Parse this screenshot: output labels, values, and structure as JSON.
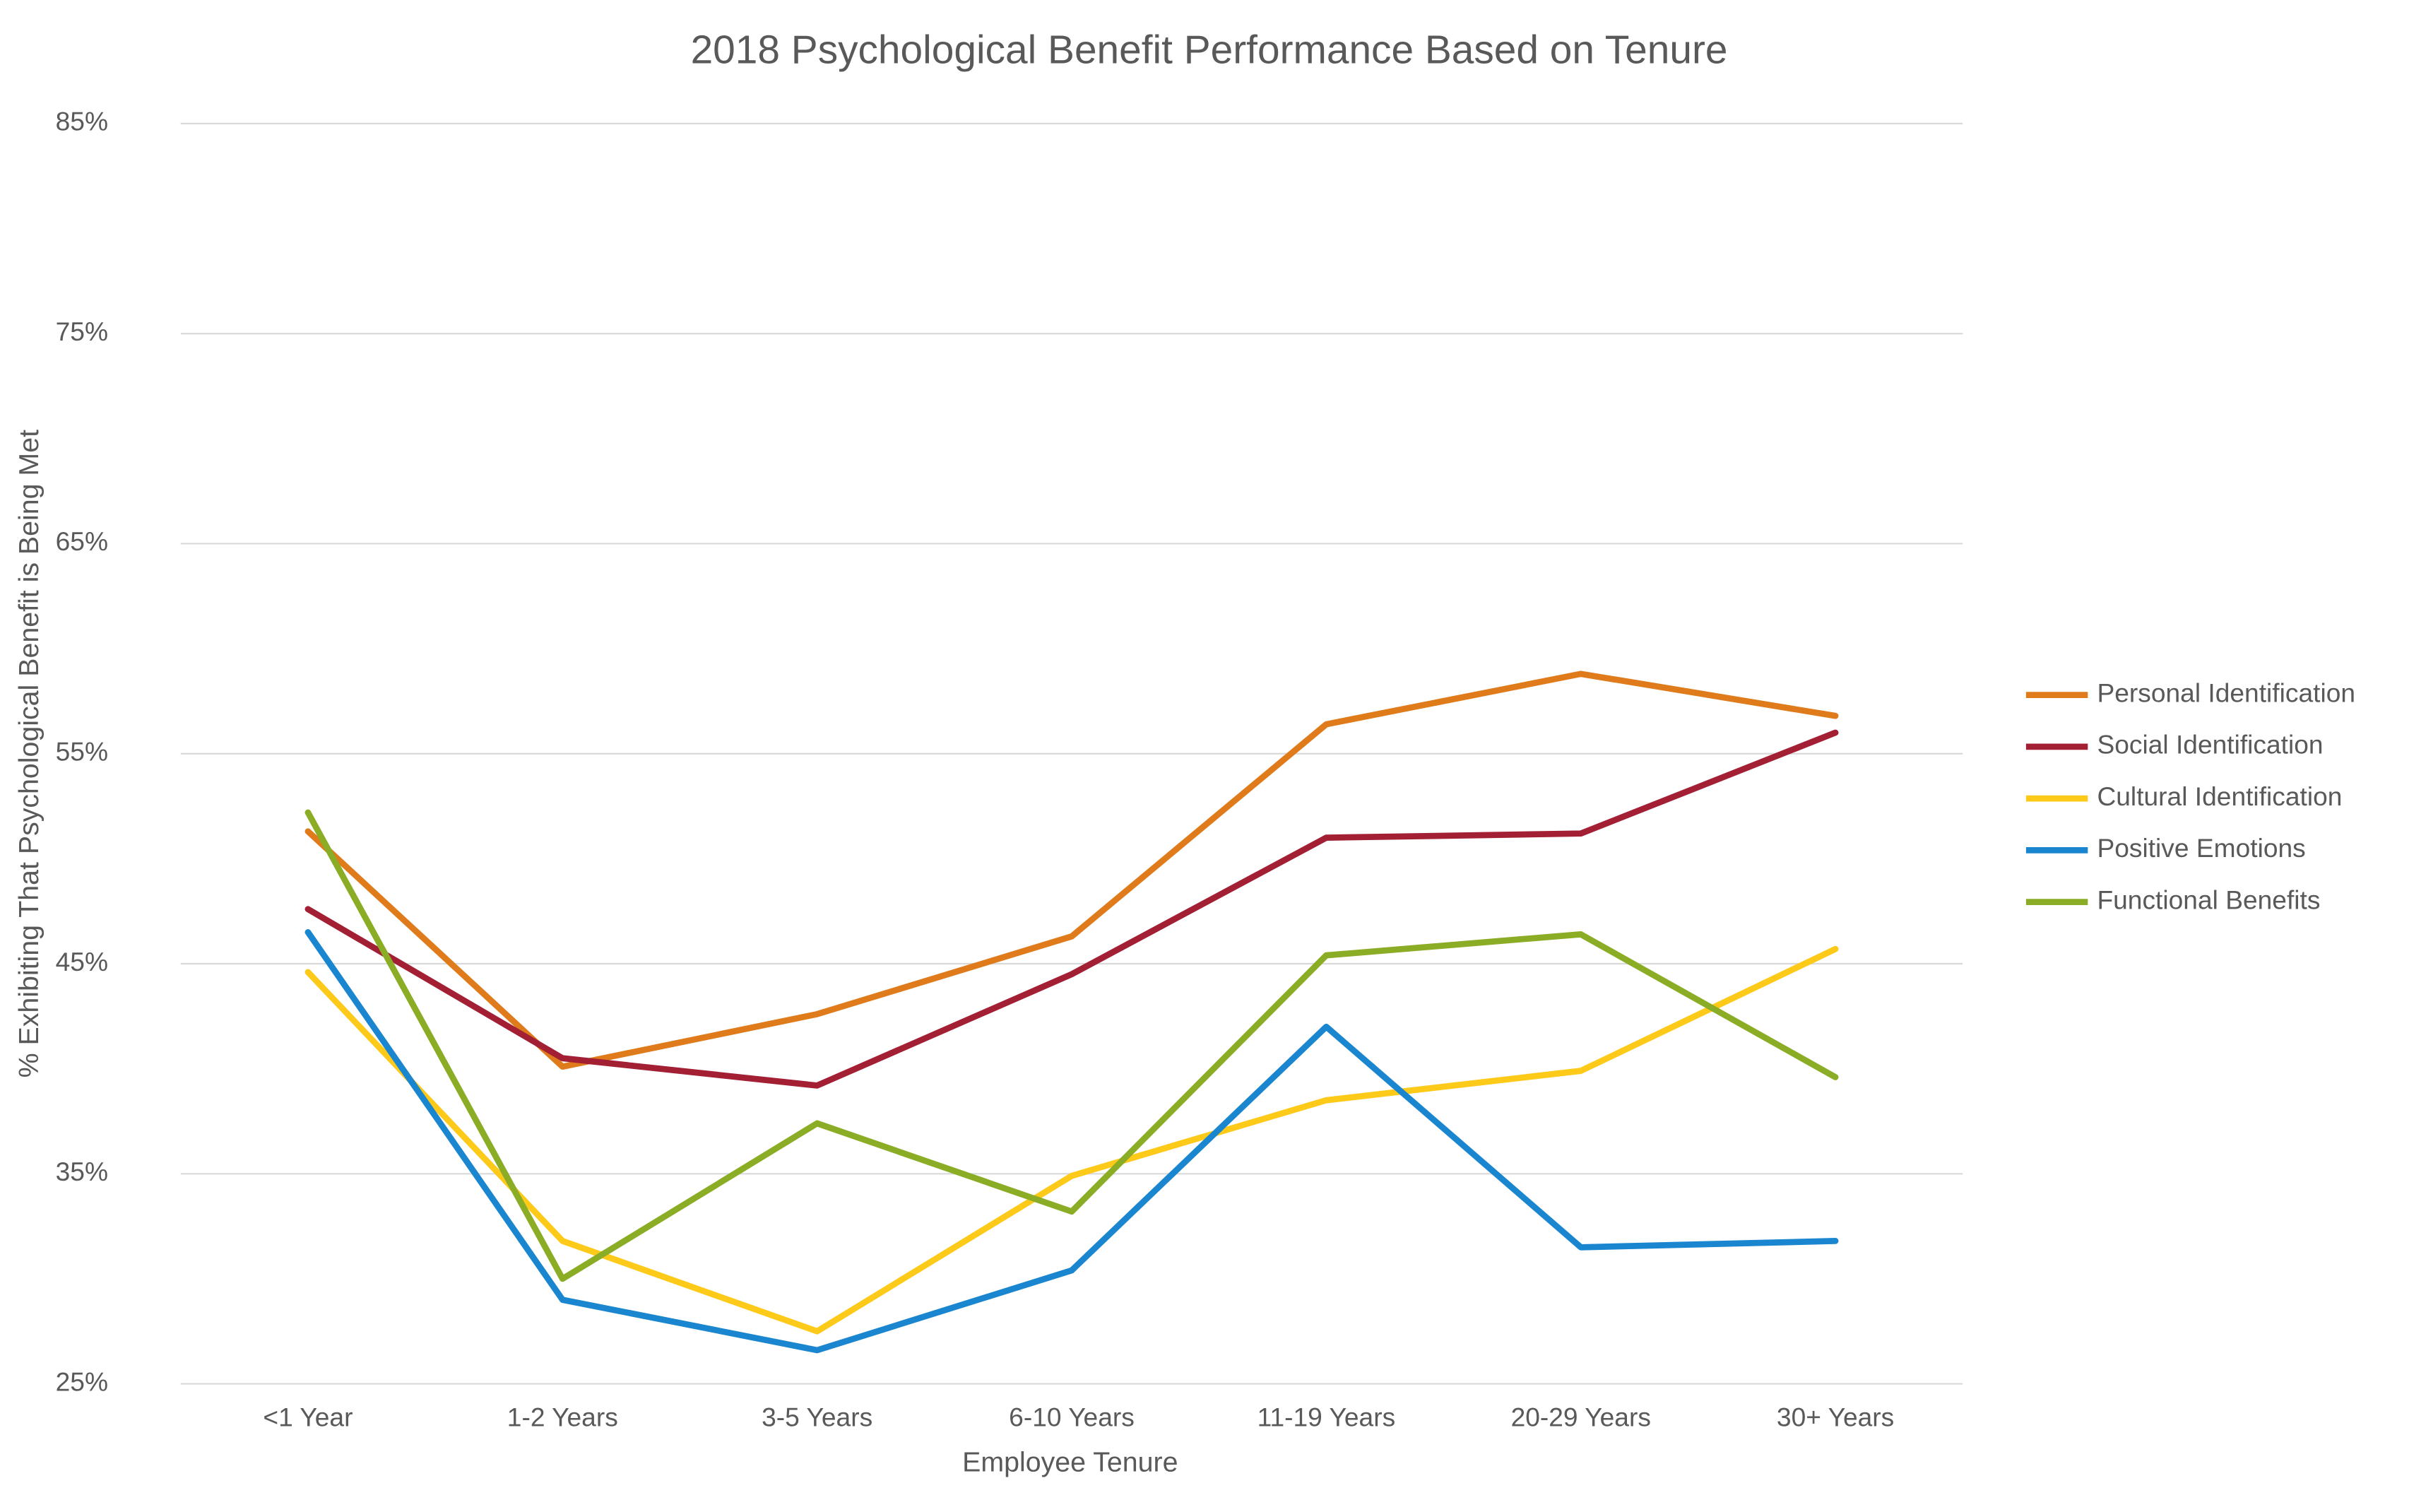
{
  "chart_data": {
    "type": "line",
    "title": "2018 Psychological Benefit Performance Based on Tenure",
    "x_label": "Employee Tenure",
    "y_label": "% Exhibiting That Psychological Benefit is Being Met",
    "categories": [
      "<1 Year",
      "1-2 Years",
      "3-5 Years",
      "6-10 Years",
      "11-19 Years",
      "20-29 Years",
      "30+ Years"
    ],
    "series": [
      {
        "name": "Personal Identification",
        "color": "#e07b1b",
        "values": [
          51.3,
          40.1,
          42.6,
          46.3,
          56.4,
          58.8,
          56.8
        ]
      },
      {
        "name": "Social Identification",
        "color": "#a31f34",
        "values": [
          47.6,
          40.5,
          39.2,
          44.5,
          51.0,
          51.2,
          56.0
        ]
      },
      {
        "name": "Cultural Identification",
        "color": "#fdca1a",
        "values": [
          44.6,
          31.8,
          27.5,
          34.9,
          38.5,
          39.9,
          45.7
        ]
      },
      {
        "name": "Positive Emotions",
        "color": "#1b86d0",
        "values": [
          46.5,
          29.0,
          26.6,
          30.4,
          42.0,
          31.5,
          31.8
        ]
      },
      {
        "name": "Functional Benefits",
        "color": "#8aad25",
        "values": [
          52.2,
          30.0,
          37.4,
          33.2,
          45.4,
          46.4,
          39.6
        ]
      }
    ],
    "ylim": [
      25,
      85
    ],
    "yticks": [
      {
        "value": 25,
        "label": "25%"
      },
      {
        "value": 35,
        "label": "35%"
      },
      {
        "value": 45,
        "label": "45%"
      },
      {
        "value": 55,
        "label": "55%"
      },
      {
        "value": 65,
        "label": "65%"
      },
      {
        "value": 75,
        "label": "75%"
      },
      {
        "value": 85,
        "label": "85%"
      }
    ],
    "grid": true,
    "legend": "right"
  }
}
